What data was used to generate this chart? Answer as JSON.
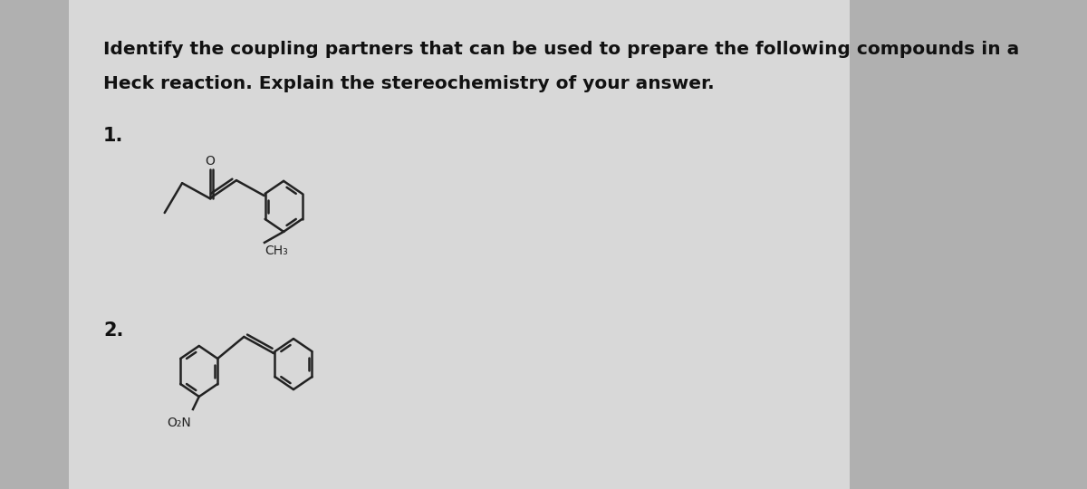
{
  "bg_color": "#b0b0b0",
  "paper_color": "#d8d8d8",
  "title_line1": "Identify the coupling partners that can be used to prepare the following compounds in a",
  "title_line2": "Heck reaction. Explain the stereochemistry of your answer.",
  "label1": "1.",
  "label2": "2.",
  "text_color": "#111111",
  "title_fontsize": 14.5,
  "label_fontsize": 15,
  "struct_color": "#222222"
}
